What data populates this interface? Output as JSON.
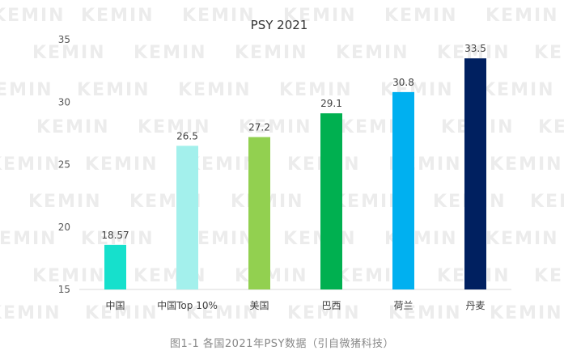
{
  "watermark": "KEMIN",
  "caption": "图1-1 各国2021年PSY数据（引自微猪科技）",
  "chart_data": {
    "type": "bar",
    "title": "PSY 2021",
    "categories": [
      "中国",
      "中国Top 10%",
      "美国",
      "巴西",
      "荷兰",
      "丹麦"
    ],
    "values": [
      18.57,
      26.5,
      27.2,
      29.1,
      30.8,
      33.5
    ],
    "value_labels": [
      "18.57",
      "26.5",
      "27.2",
      "29.1",
      "30.8",
      "33.5"
    ],
    "colors": [
      "#16e0cc",
      "#a3f0ec",
      "#92d050",
      "#00b050",
      "#00b0f0",
      "#002060"
    ],
    "ylim": [
      15,
      35
    ],
    "yticks": [
      15,
      20,
      25,
      30,
      35
    ],
    "xlabel": "",
    "ylabel": "",
    "grid": false,
    "legend": "none"
  }
}
